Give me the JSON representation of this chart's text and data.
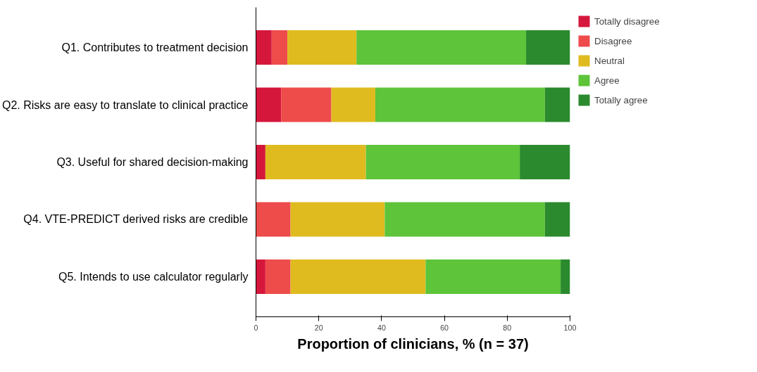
{
  "chart_data": {
    "type": "bar",
    "orientation": "horizontal",
    "stacked": true,
    "xlabel": "Proportion of clinicians, % (n = 37)",
    "categories": [
      "Q1. Contributes to treatment decision",
      "Q2. Risks are easy to translate to clinical practice",
      "Q3. Useful for shared decision-making",
      "Q4. VTE-PREDICT derived risks are credible",
      "Q5. Intends to use calculator regularly"
    ],
    "series": [
      {
        "name": "Totally disagree",
        "color": "#d5173c",
        "values": [
          5,
          8,
          3,
          0,
          3
        ]
      },
      {
        "name": "Disagree",
        "color": "#ee4b4b",
        "values": [
          5,
          16,
          0,
          11,
          8
        ]
      },
      {
        "name": "Neutral",
        "color": "#e0bb1f",
        "values": [
          22,
          14,
          32,
          30,
          43
        ]
      },
      {
        "name": "Agree",
        "color": "#5ec43a",
        "values": [
          54,
          54,
          49,
          51,
          43
        ]
      },
      {
        "name": "Totally agree",
        "color": "#2b8a2d",
        "values": [
          14,
          8,
          16,
          8,
          3
        ]
      }
    ],
    "xlim": [
      0,
      100
    ],
    "xticks": [
      0,
      20,
      40,
      60,
      80,
      100
    ],
    "grid": false,
    "legend": "top right"
  }
}
